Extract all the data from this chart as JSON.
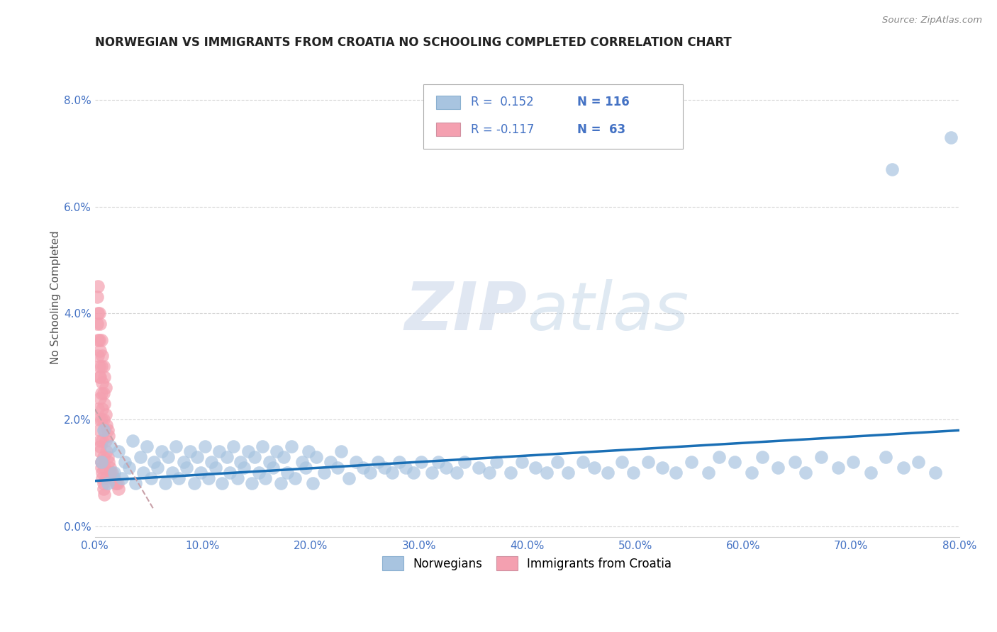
{
  "title": "NORWEGIAN VS IMMIGRANTS FROM CROATIA NO SCHOOLING COMPLETED CORRELATION CHART",
  "source": "Source: ZipAtlas.com",
  "ylabel": "No Schooling Completed",
  "xlim": [
    0,
    0.8
  ],
  "ylim": [
    -0.002,
    0.088
  ],
  "yticks": [
    0.0,
    0.02,
    0.04,
    0.06,
    0.08
  ],
  "xticks": [
    0.0,
    0.1,
    0.2,
    0.3,
    0.4,
    0.5,
    0.6,
    0.7,
    0.8
  ],
  "R_blue": 0.152,
  "N_blue": 116,
  "R_pink": -0.117,
  "N_pink": 63,
  "blue_color": "#a8c4e0",
  "pink_color": "#f4a0b0",
  "trendline_blue": "#1a6fb5",
  "trendline_pink": "#c8a0a8",
  "legend_label_blue": "Norwegians",
  "legend_label_pink": "Immigrants from Croatia",
  "background_color": "#ffffff",
  "grid_color": "#cccccc",
  "blue_trend_x": [
    0.0,
    0.8
  ],
  "blue_trend_y": [
    0.0085,
    0.018
  ],
  "pink_trend_x": [
    0.0,
    0.055
  ],
  "pink_trend_y": [
    0.022,
    0.003
  ],
  "blue_x": [
    0.006,
    0.008,
    0.012,
    0.015,
    0.018,
    0.022,
    0.025,
    0.028,
    0.032,
    0.035,
    0.038,
    0.042,
    0.045,
    0.048,
    0.052,
    0.055,
    0.058,
    0.062,
    0.065,
    0.068,
    0.072,
    0.075,
    0.078,
    0.082,
    0.085,
    0.088,
    0.092,
    0.095,
    0.098,
    0.102,
    0.105,
    0.108,
    0.112,
    0.115,
    0.118,
    0.122,
    0.125,
    0.128,
    0.132,
    0.135,
    0.138,
    0.142,
    0.145,
    0.148,
    0.152,
    0.155,
    0.158,
    0.162,
    0.165,
    0.168,
    0.172,
    0.175,
    0.178,
    0.182,
    0.185,
    0.192,
    0.195,
    0.198,
    0.202,
    0.205,
    0.212,
    0.218,
    0.225,
    0.228,
    0.235,
    0.242,
    0.248,
    0.255,
    0.262,
    0.268,
    0.275,
    0.282,
    0.288,
    0.295,
    0.302,
    0.312,
    0.318,
    0.325,
    0.335,
    0.342,
    0.355,
    0.365,
    0.372,
    0.385,
    0.395,
    0.408,
    0.418,
    0.428,
    0.438,
    0.452,
    0.462,
    0.475,
    0.488,
    0.498,
    0.512,
    0.525,
    0.538,
    0.552,
    0.568,
    0.578,
    0.592,
    0.608,
    0.618,
    0.632,
    0.648,
    0.658,
    0.672,
    0.688,
    0.702,
    0.718,
    0.732,
    0.748,
    0.762,
    0.778,
    0.738,
    0.792
  ],
  "blue_y": [
    0.012,
    0.018,
    0.008,
    0.015,
    0.01,
    0.014,
    0.009,
    0.012,
    0.011,
    0.016,
    0.008,
    0.013,
    0.01,
    0.015,
    0.009,
    0.012,
    0.011,
    0.014,
    0.008,
    0.013,
    0.01,
    0.015,
    0.009,
    0.012,
    0.011,
    0.014,
    0.008,
    0.013,
    0.01,
    0.015,
    0.009,
    0.012,
    0.011,
    0.014,
    0.008,
    0.013,
    0.01,
    0.015,
    0.009,
    0.012,
    0.011,
    0.014,
    0.008,
    0.013,
    0.01,
    0.015,
    0.009,
    0.012,
    0.011,
    0.014,
    0.008,
    0.013,
    0.01,
    0.015,
    0.009,
    0.012,
    0.011,
    0.014,
    0.008,
    0.013,
    0.01,
    0.012,
    0.011,
    0.014,
    0.009,
    0.012,
    0.011,
    0.01,
    0.012,
    0.011,
    0.01,
    0.012,
    0.011,
    0.01,
    0.012,
    0.01,
    0.012,
    0.011,
    0.01,
    0.012,
    0.011,
    0.01,
    0.012,
    0.01,
    0.012,
    0.011,
    0.01,
    0.012,
    0.01,
    0.012,
    0.011,
    0.01,
    0.012,
    0.01,
    0.012,
    0.011,
    0.01,
    0.012,
    0.01,
    0.013,
    0.012,
    0.01,
    0.013,
    0.011,
    0.012,
    0.01,
    0.013,
    0.011,
    0.012,
    0.01,
    0.013,
    0.011,
    0.012,
    0.01,
    0.067,
    0.073
  ],
  "pink_x": [
    0.002,
    0.002,
    0.003,
    0.003,
    0.003,
    0.004,
    0.004,
    0.004,
    0.005,
    0.005,
    0.005,
    0.006,
    0.006,
    0.006,
    0.007,
    0.007,
    0.007,
    0.008,
    0.008,
    0.008,
    0.009,
    0.009,
    0.009,
    0.01,
    0.01,
    0.01,
    0.011,
    0.011,
    0.012,
    0.012,
    0.013,
    0.013,
    0.014,
    0.015,
    0.016,
    0.017,
    0.018,
    0.019,
    0.02,
    0.021,
    0.022,
    0.003,
    0.004,
    0.005,
    0.006,
    0.007,
    0.008,
    0.009,
    0.01,
    0.005,
    0.006,
    0.007,
    0.008,
    0.003,
    0.004,
    0.005,
    0.006,
    0.004,
    0.005,
    0.006,
    0.007,
    0.008,
    0.009
  ],
  "pink_y": [
    0.038,
    0.043,
    0.035,
    0.04,
    0.045,
    0.03,
    0.035,
    0.04,
    0.028,
    0.033,
    0.038,
    0.025,
    0.03,
    0.035,
    0.022,
    0.027,
    0.032,
    0.02,
    0.025,
    0.03,
    0.018,
    0.023,
    0.028,
    0.016,
    0.021,
    0.026,
    0.014,
    0.019,
    0.013,
    0.018,
    0.012,
    0.017,
    0.011,
    0.01,
    0.01,
    0.009,
    0.009,
    0.008,
    0.008,
    0.008,
    0.007,
    0.032,
    0.028,
    0.024,
    0.02,
    0.016,
    0.013,
    0.011,
    0.009,
    0.015,
    0.012,
    0.01,
    0.008,
    0.022,
    0.018,
    0.014,
    0.011,
    0.02,
    0.016,
    0.012,
    0.009,
    0.007,
    0.006
  ]
}
